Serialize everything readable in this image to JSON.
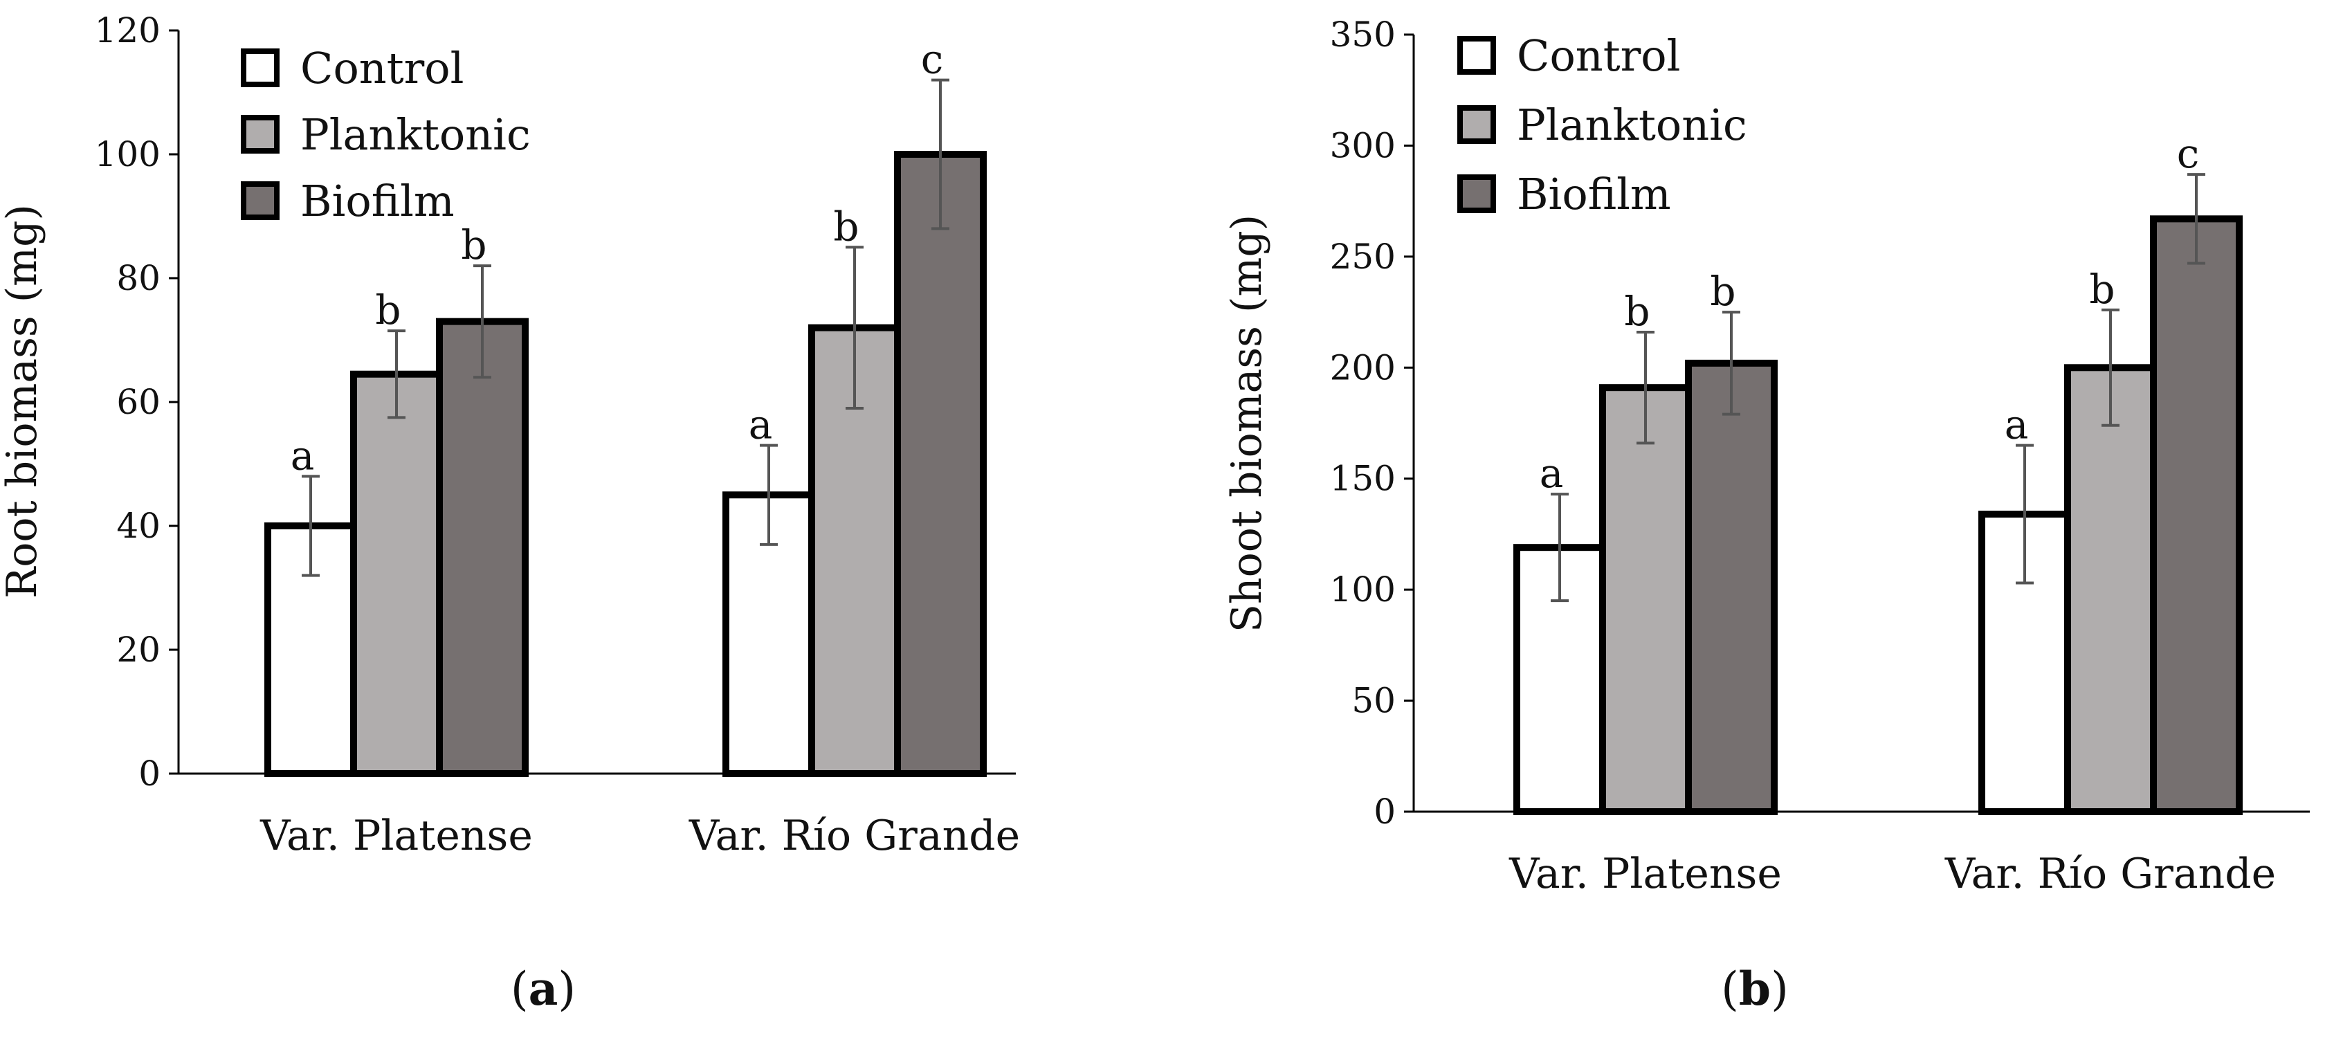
{
  "chart_data": [
    {
      "type": "bar",
      "panel_label": "a",
      "categories": [
        "Var. Platense",
        "Var. Río Grande"
      ],
      "ylabel": "Root biomass (mg)",
      "xlabel": "",
      "ylim": [
        0,
        120
      ],
      "yticks": [
        0,
        20,
        40,
        60,
        80,
        100,
        120
      ],
      "legend": {
        "placement": "top-left"
      },
      "series": [
        {
          "name": "Control",
          "color": "#ffffff",
          "values": [
            40,
            45
          ],
          "errors": [
            8,
            8
          ],
          "letters": [
            "a",
            "a"
          ]
        },
        {
          "name": "Planktonic",
          "color": "#b0adad",
          "values": [
            64.5,
            72
          ],
          "errors": [
            7,
            13
          ],
          "letters": [
            "b",
            "b"
          ]
        },
        {
          "name": "Biofilm",
          "color": "#767070",
          "values": [
            73,
            100
          ],
          "errors": [
            9,
            12
          ],
          "letters": [
            "b",
            "c"
          ]
        }
      ]
    },
    {
      "type": "bar",
      "panel_label": "b",
      "categories": [
        "Var. Platense",
        "Var. Río Grande"
      ],
      "ylabel": "Shoot biomass (mg)",
      "xlabel": "",
      "ylim": [
        0,
        350
      ],
      "yticks": [
        0,
        50,
        100,
        150,
        200,
        250,
        300,
        350
      ],
      "legend": {
        "placement": "top-left"
      },
      "series": [
        {
          "name": "Control",
          "color": "#ffffff",
          "values": [
            119,
            134
          ],
          "errors": [
            24,
            31
          ],
          "letters": [
            "a",
            "a"
          ]
        },
        {
          "name": "Planktonic",
          "color": "#b0adad",
          "values": [
            191,
            200
          ],
          "errors": [
            25,
            26
          ],
          "letters": [
            "b",
            "b"
          ]
        },
        {
          "name": "Biofilm",
          "color": "#767070",
          "values": [
            202,
            267
          ],
          "errors": [
            23,
            20
          ],
          "letters": [
            "b",
            "c"
          ]
        }
      ]
    }
  ],
  "panel_parens": [
    "(",
    ")"
  ]
}
